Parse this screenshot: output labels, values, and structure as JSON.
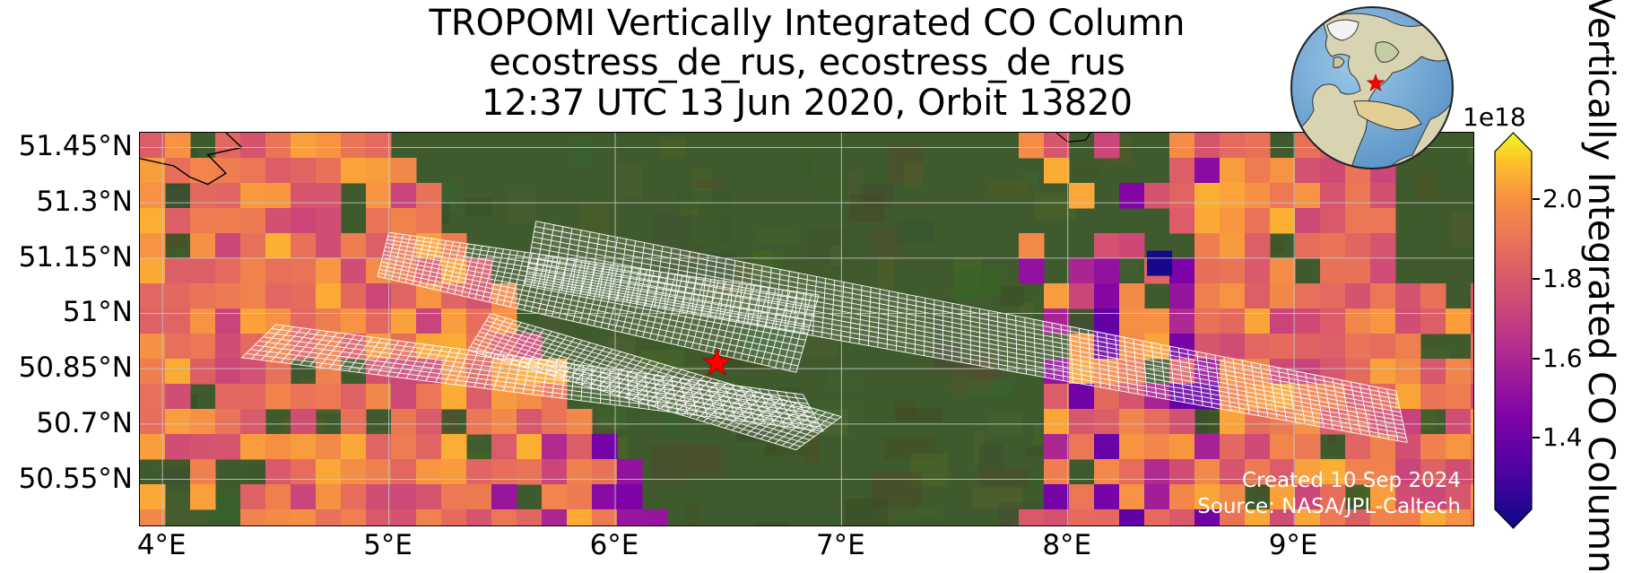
{
  "title": {
    "line1": "TROPOMI Vertically Integrated CO Column",
    "line2": "ecostress_de_rus, ecostress_de_rus",
    "line3": "12:37 UTC 13 Jun 2020, Orbit 13820"
  },
  "map": {
    "lon_range": [
      3.9,
      9.8
    ],
    "lat_range": [
      50.42,
      51.49
    ],
    "lat_ticks": [
      {
        "value": 51.45,
        "label": "51.45°N"
      },
      {
        "value": 51.3,
        "label": "51.3°N"
      },
      {
        "value": 51.15,
        "label": "51.15°N"
      },
      {
        "value": 51.0,
        "label": "51°N"
      },
      {
        "value": 50.85,
        "label": "50.85°N"
      },
      {
        "value": 50.7,
        "label": "50.7°N"
      },
      {
        "value": 50.55,
        "label": "50.55°N"
      }
    ],
    "lon_ticks": [
      {
        "value": 4,
        "label": "4°E"
      },
      {
        "value": 5,
        "label": "5°E"
      },
      {
        "value": 6,
        "label": "6°E"
      },
      {
        "value": 7,
        "label": "7°E"
      },
      {
        "value": 8,
        "label": "8°E"
      },
      {
        "value": 9,
        "label": "9°E"
      }
    ],
    "site_marker": {
      "lon": 6.45,
      "lat": 50.865,
      "icon": "red-star-icon"
    },
    "basemap": "satellite imagery",
    "gridlines": true
  },
  "credits": {
    "created": "Created 10 Sep 2024",
    "source": "Source: NASA/JPL-Caltech"
  },
  "colorbar": {
    "title": "Vertically Integrated CO Column",
    "exponent": "1e18",
    "range": [
      1.22,
      2.12
    ],
    "colormap": "plasma",
    "extend": "both",
    "ticks": [
      {
        "value": 1.4,
        "label": "1.4"
      },
      {
        "value": 1.6,
        "label": "1.6"
      },
      {
        "value": 1.8,
        "label": "1.8"
      },
      {
        "value": 2.0,
        "label": "2.0"
      }
    ]
  },
  "inset_globe": {
    "marker": "red-star-icon",
    "region": "Europe"
  },
  "colors": {
    "co_low": "#0d0887",
    "co_mid": "#cc4778",
    "co_high": "#f0f921",
    "ground": "#3f5a2c",
    "footprint": "#ffffff",
    "marker": "#ff0000"
  }
}
